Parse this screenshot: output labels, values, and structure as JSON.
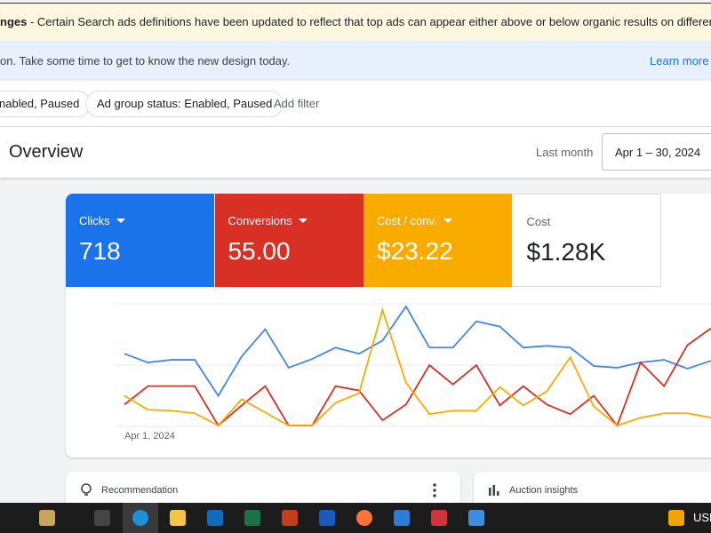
{
  "banner": {
    "strong": "nges",
    "text": " - Certain Search ads definitions have been updated to reflect that top ads can appear either above or below organic results on different queries."
  },
  "info": {
    "text": "on. Take some time to get to know the new design today.",
    "link": "Learn more"
  },
  "filters": {
    "chips": [
      "nabled, Paused",
      "Ad group status: Enabled, Paused"
    ],
    "add": "Add filter"
  },
  "header": {
    "title": "Overview",
    "range_label": "Last month",
    "range": "Apr 1 – 30, 2024"
  },
  "metrics": [
    {
      "label": "Clicks",
      "value": "718",
      "color": "#1a73e8"
    },
    {
      "label": "Conversions",
      "value": "55.00",
      "color": "#d93025"
    },
    {
      "label": "Cost / conv.",
      "value": "$23.22",
      "color": "#f9ab00"
    },
    {
      "label": "Cost",
      "value": "$1.28K",
      "color": "#ffffff"
    }
  ],
  "chart": {
    "x_label": "Apr 1, 2024",
    "ylim": [
      0,
      140
    ],
    "series": [
      {
        "color": "#4285f4",
        "values": [
          83,
          73,
          76,
          76,
          35,
          80,
          111,
          67,
          77,
          90,
          83,
          98,
          137,
          90,
          90,
          120,
          114,
          90,
          92,
          90,
          69,
          67,
          73,
          76,
          66,
          75
        ]
      },
      {
        "color": "#d93025",
        "values": [
          25,
          46,
          46,
          46,
          1,
          24,
          46,
          1,
          1,
          46,
          41,
          7,
          25,
          70,
          48,
          70,
          24,
          46,
          25,
          14,
          35,
          1,
          73,
          46,
          93,
          112
        ]
      },
      {
        "color": "#f9ab00",
        "values": [
          35,
          19,
          18,
          15,
          1,
          31,
          16,
          1,
          1,
          27,
          38,
          133,
          50,
          14,
          18,
          18,
          45,
          24,
          40,
          79,
          23,
          1,
          10,
          15,
          15,
          10
        ]
      }
    ]
  },
  "cards": [
    "Recommendation",
    "Auction insights"
  ],
  "taskbar": {
    "currency": "USD"
  }
}
